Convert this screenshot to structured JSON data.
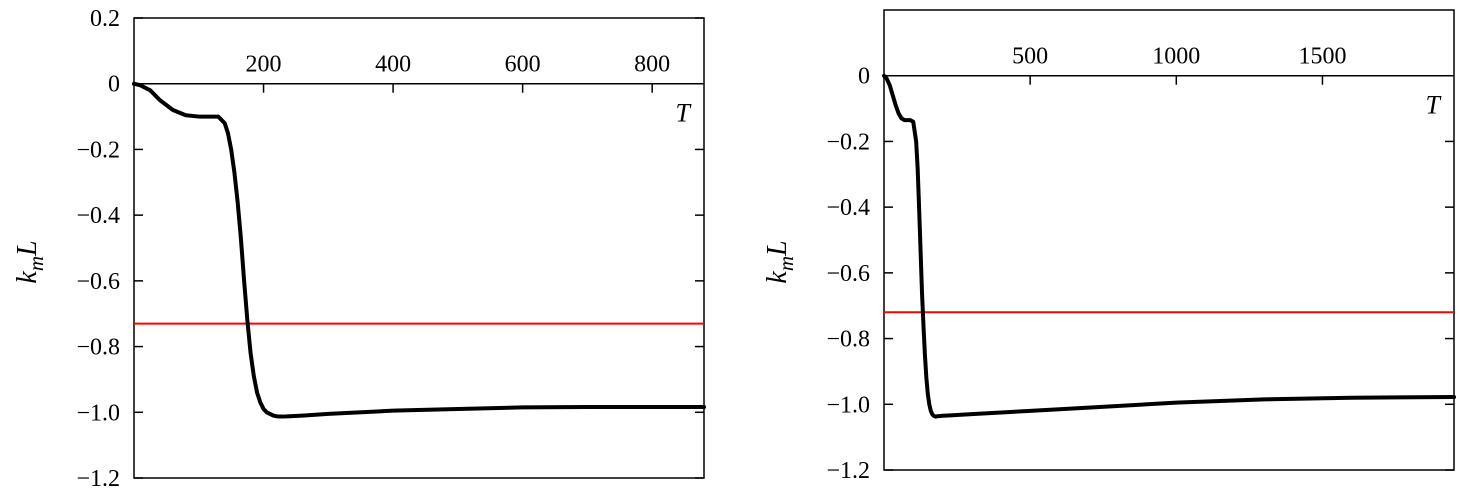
{
  "chart_data": [
    {
      "type": "line",
      "ylabel_main": "k",
      "ylabel_sub": "m",
      "ylabel_tail": "L",
      "xlabel": "T",
      "xlim": [
        0,
        880
      ],
      "ylim": [
        -1.2,
        0.2
      ],
      "x_ticks": [
        200,
        400,
        600,
        800
      ],
      "x_tick_labels": [
        "200",
        "400",
        "600",
        "800"
      ],
      "y_ticks": [
        0.2,
        0,
        -0.2,
        -0.4,
        -0.6,
        -0.8,
        -1.0,
        -1.2
      ],
      "y_tick_labels": [
        "0.2",
        "0",
        "−0.2",
        "−0.4",
        "−0.6",
        "−0.8",
        "−1.0",
        "−1.2"
      ],
      "reference_line": {
        "y": -0.73,
        "color": "#ff0000"
      },
      "series": [
        {
          "color": "#000000",
          "x": [
            0,
            10,
            25,
            40,
            60,
            80,
            100,
            120,
            130,
            140,
            145,
            150,
            155,
            160,
            165,
            170,
            175,
            180,
            185,
            190,
            195,
            200,
            205,
            210,
            215,
            220,
            225,
            230,
            240,
            260,
            300,
            400,
            500,
            600,
            700,
            800,
            880
          ],
          "y": [
            0,
            -0.005,
            -0.02,
            -0.05,
            -0.08,
            -0.096,
            -0.1,
            -0.1,
            -0.1,
            -0.12,
            -0.15,
            -0.2,
            -0.27,
            -0.36,
            -0.47,
            -0.6,
            -0.72,
            -0.82,
            -0.89,
            -0.94,
            -0.97,
            -0.99,
            -1.0,
            -1.005,
            -1.01,
            -1.012,
            -1.013,
            -1.013,
            -1.012,
            -1.01,
            -1.005,
            -0.995,
            -0.99,
            -0.985,
            -0.984,
            -0.984,
            -0.984
          ]
        }
      ]
    },
    {
      "type": "line",
      "ylabel_main": "k",
      "ylabel_sub": "m",
      "ylabel_tail": "L",
      "xlabel": "T",
      "xlim": [
        0,
        1950
      ],
      "ylim": [
        -1.2,
        0.2
      ],
      "x_ticks": [
        500,
        1000,
        1500
      ],
      "x_tick_labels": [
        "500",
        "1000",
        "1500"
      ],
      "y_ticks": [
        0,
        -0.2,
        -0.4,
        -0.6,
        -0.8,
        -1.0,
        -1.2
      ],
      "y_tick_labels": [
        "0",
        "−0.2",
        "−0.4",
        "−0.6",
        "−0.8",
        "−1.0",
        "−1.2"
      ],
      "reference_line": {
        "y": -0.72,
        "color": "#ff0000"
      },
      "series": [
        {
          "color": "#000000",
          "x": [
            0,
            10,
            20,
            30,
            40,
            50,
            60,
            70,
            80,
            90,
            100,
            110,
            115,
            120,
            125,
            130,
            135,
            140,
            145,
            150,
            155,
            160,
            165,
            170,
            175,
            180,
            185,
            190,
            200,
            220,
            300,
            500,
            700,
            1000,
            1300,
            1600,
            1950
          ],
          "y": [
            0,
            -0.01,
            -0.03,
            -0.06,
            -0.09,
            -0.115,
            -0.13,
            -0.135,
            -0.135,
            -0.135,
            -0.14,
            -0.2,
            -0.28,
            -0.4,
            -0.53,
            -0.66,
            -0.76,
            -0.85,
            -0.92,
            -0.97,
            -1.0,
            -1.02,
            -1.03,
            -1.035,
            -1.037,
            -1.037,
            -1.036,
            -1.036,
            -1.035,
            -1.034,
            -1.03,
            -1.02,
            -1.01,
            -0.995,
            -0.985,
            -0.98,
            -0.978
          ]
        }
      ]
    }
  ]
}
